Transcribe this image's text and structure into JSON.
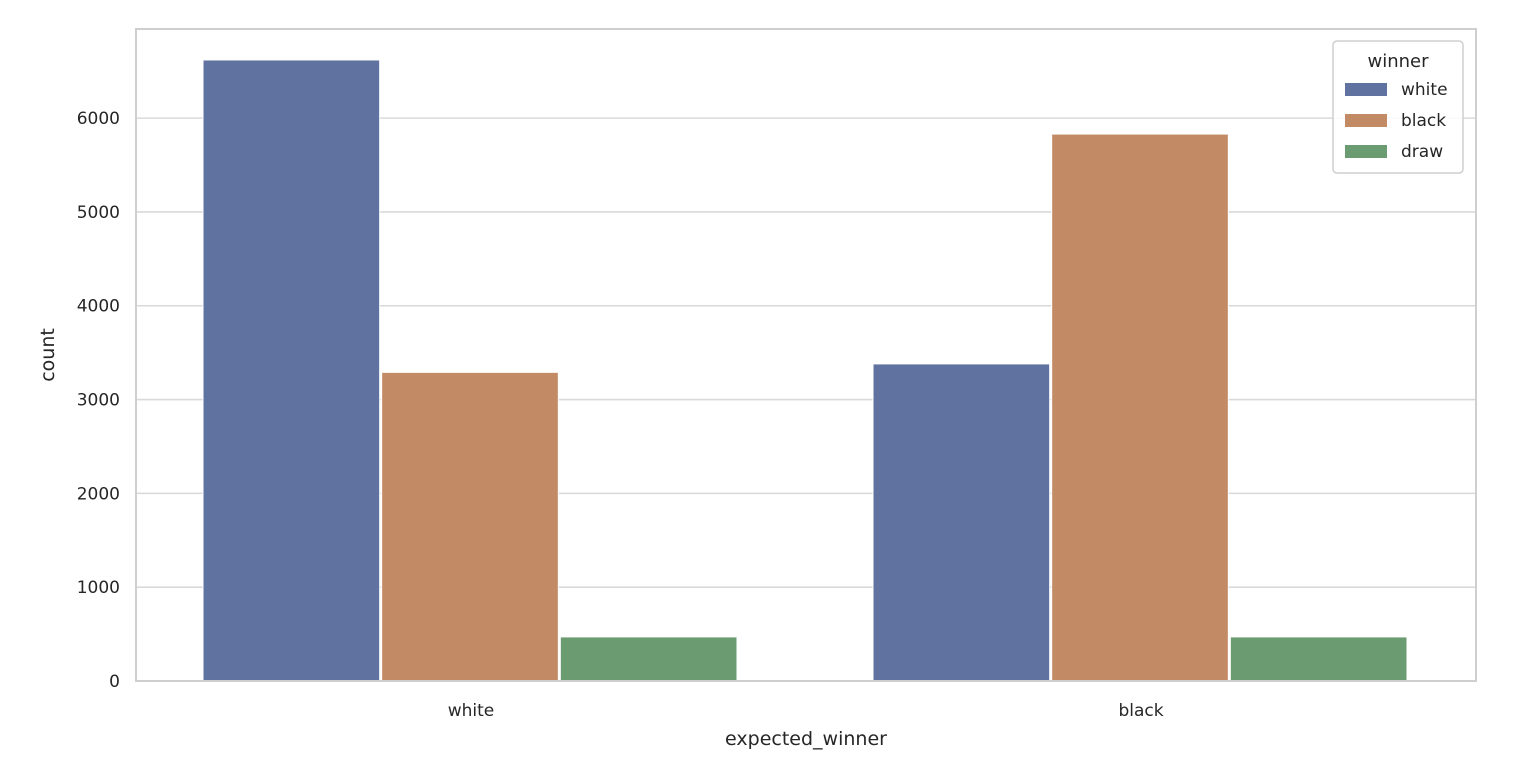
{
  "chart_data": {
    "type": "bar",
    "title": "",
    "xlabel": "expected_winner",
    "ylabel": "count",
    "categories": [
      "white",
      "black"
    ],
    "series": [
      {
        "name": "white",
        "color": "#6073a0",
        "values": [
          6620,
          3380
        ]
      },
      {
        "name": "black",
        "color": "#c28a65",
        "values": [
          3290,
          5830
        ]
      },
      {
        "name": "draw",
        "color": "#6b9c71",
        "values": [
          470,
          470
        ]
      }
    ],
    "ylim": [
      0,
      6950
    ],
    "yticks": [
      0,
      1000,
      2000,
      3000,
      4000,
      5000,
      6000
    ],
    "grid": "horizontal",
    "legend": {
      "title": "winner",
      "placement": "top-right"
    }
  }
}
